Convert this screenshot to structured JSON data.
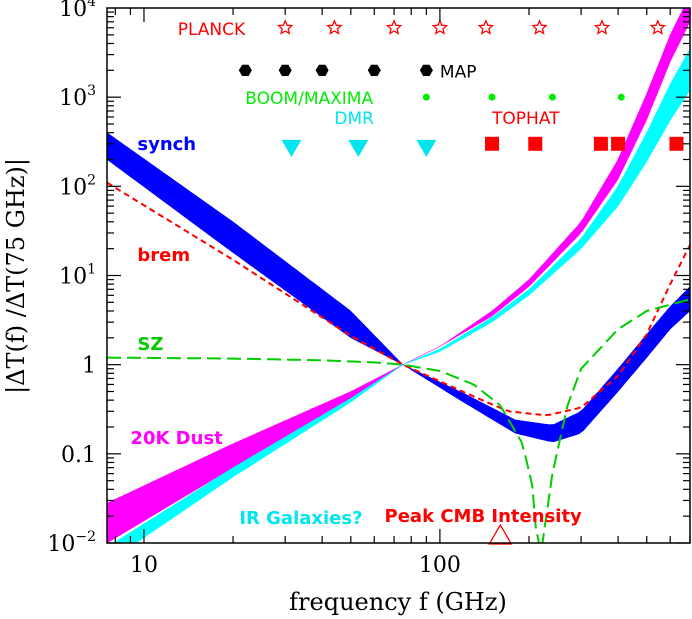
{
  "chart_data": {
    "type": "line",
    "title": "",
    "xlabel": "frequency f (GHz)",
    "ylabel": "|ΔT(f) /ΔT(75 GHz)|",
    "xscale": "log",
    "yscale": "log",
    "xlim": [
      7.5,
      700
    ],
    "ylim": [
      0.01,
      10000
    ],
    "x_ticks": [
      {
        "value": 10,
        "label": "10"
      },
      {
        "value": 100,
        "label": "100"
      }
    ],
    "y_ticks": [
      {
        "value": 0.01,
        "base": "10",
        "exp": "−2"
      },
      {
        "value": 0.1,
        "base": "0.1",
        "exp": ""
      },
      {
        "value": 1,
        "base": "1",
        "exp": ""
      },
      {
        "value": 10,
        "base": "10",
        "exp": "1"
      },
      {
        "value": 100,
        "base": "10",
        "exp": "2"
      },
      {
        "value": 1000,
        "base": "10",
        "exp": "3"
      },
      {
        "value": 10000,
        "base": "10",
        "exp": "4"
      }
    ],
    "colors": {
      "synch": "#0000ff",
      "dust": "#ff00ff",
      "ir": "#00ffff",
      "brem": "#ff0000",
      "sz": "#00cc00",
      "planck": "#ff0000",
      "map": "#000000",
      "boom": "#00ee00",
      "dmr": "#00e5ee",
      "tophat": "#ff0000",
      "peak": "#ff0000"
    },
    "bands": [
      {
        "name": "synch",
        "color": "#0000ff",
        "upper": [
          [
            7.5,
            400
          ],
          [
            20,
            40
          ],
          [
            50,
            4
          ],
          [
            75,
            1
          ],
          [
            120,
            0.48
          ],
          [
            180,
            0.24
          ],
          [
            240,
            0.21
          ],
          [
            300,
            0.3
          ],
          [
            400,
            0.9
          ],
          [
            500,
            2.2
          ],
          [
            600,
            4.5
          ],
          [
            700,
            7.5
          ]
        ],
        "lower": [
          [
            7.5,
            200
          ],
          [
            20,
            18
          ],
          [
            50,
            2
          ],
          [
            75,
            1
          ],
          [
            120,
            0.38
          ],
          [
            180,
            0.17
          ],
          [
            240,
            0.135
          ],
          [
            300,
            0.17
          ],
          [
            400,
            0.5
          ],
          [
            500,
            1.2
          ],
          [
            600,
            2.5
          ],
          [
            700,
            4
          ]
        ]
      },
      {
        "name": "dust",
        "color": "#ff00ff",
        "upper": [
          [
            7.5,
            0.028
          ],
          [
            20,
            0.13
          ],
          [
            50,
            0.5
          ],
          [
            75,
            1
          ],
          [
            100,
            1.6
          ],
          [
            150,
            4
          ],
          [
            200,
            9
          ],
          [
            300,
            40
          ],
          [
            400,
            200
          ],
          [
            500,
            1100
          ],
          [
            600,
            5000
          ],
          [
            700,
            14000
          ]
        ],
        "lower": [
          [
            7.5,
            0.01
          ],
          [
            20,
            0.07
          ],
          [
            50,
            0.4
          ],
          [
            75,
            1
          ],
          [
            100,
            1.6
          ],
          [
            150,
            3.5
          ],
          [
            200,
            7.5
          ],
          [
            300,
            30
          ],
          [
            400,
            120
          ],
          [
            500,
            560
          ],
          [
            600,
            2500
          ],
          [
            700,
            7000
          ]
        ]
      },
      {
        "name": "ir",
        "color": "#00ffff",
        "upper": [
          [
            7.5,
            0.009
          ],
          [
            20,
            0.07
          ],
          [
            50,
            0.42
          ],
          [
            75,
            1
          ],
          [
            100,
            1.5
          ],
          [
            150,
            3.4
          ],
          [
            200,
            7
          ],
          [
            300,
            26
          ],
          [
            400,
            100
          ],
          [
            500,
            400
          ],
          [
            600,
            1400
          ],
          [
            700,
            3500
          ]
        ],
        "lower": [
          [
            7.5,
            0.006
          ],
          [
            20,
            0.055
          ],
          [
            50,
            0.38
          ],
          [
            75,
            1
          ],
          [
            100,
            1.4
          ],
          [
            150,
            3.0
          ],
          [
            200,
            6
          ],
          [
            300,
            20
          ],
          [
            400,
            60
          ],
          [
            500,
            190
          ],
          [
            600,
            550
          ],
          [
            700,
            1200
          ]
        ]
      }
    ],
    "series": [
      {
        "name": "brem",
        "color": "#ff0000",
        "dash": "short",
        "points": [
          [
            7.5,
            110
          ],
          [
            20,
            15
          ],
          [
            50,
            2.1
          ],
          [
            75,
            1
          ],
          [
            100,
            0.65
          ],
          [
            130,
            0.44
          ],
          [
            170,
            0.3
          ],
          [
            230,
            0.27
          ],
          [
            300,
            0.33
          ],
          [
            400,
            0.75
          ],
          [
            500,
            2.2
          ],
          [
            600,
            8
          ],
          [
            700,
            22
          ]
        ]
      },
      {
        "name": "SZ",
        "color": "#00cc00",
        "dash": "long",
        "points": [
          [
            7.5,
            1.2
          ],
          [
            20,
            1.17
          ],
          [
            40,
            1.12
          ],
          [
            60,
            1.06
          ],
          [
            75,
            1
          ],
          [
            100,
            0.85
          ],
          [
            130,
            0.6
          ],
          [
            160,
            0.35
          ],
          [
            190,
            0.13
          ],
          [
            205,
            0.045
          ],
          [
            212,
            0.012
          ],
          [
            217,
            0.0095
          ]
        ]
      },
      {
        "name": "SZ-increment",
        "color": "#00cc00",
        "dash": "long",
        "points": [
          [
            221,
            0.009
          ],
          [
            226,
            0.015
          ],
          [
            240,
            0.06
          ],
          [
            270,
            0.35
          ],
          [
            300,
            0.9
          ],
          [
            400,
            2.5
          ],
          [
            500,
            4
          ],
          [
            700,
            5.4
          ]
        ]
      }
    ],
    "experiments": [
      {
        "name": "PLANCK",
        "color": "#ff0000",
        "marker": "star-open",
        "y": 6000,
        "label_pos": [
          13,
          6000
        ],
        "freqs": [
          30,
          44,
          70,
          100,
          143,
          217,
          353,
          545
        ]
      },
      {
        "name": "MAP",
        "color": "#000000",
        "marker": "hexagon-filled",
        "y": 2000,
        "label_pos": [
          100,
          2000
        ],
        "freqs": [
          22,
          30,
          40,
          60,
          90
        ]
      },
      {
        "name": "BOOM/MAXIMA",
        "color": "#00ee00",
        "marker": "dot",
        "y": 1000,
        "label_pos": [
          22,
          1000
        ],
        "freqs": [
          90,
          150,
          240,
          410
        ]
      },
      {
        "name": "DMR",
        "color": "#00e5ee",
        "marker": "triangle-down",
        "y": 270,
        "label_pos": [
          44,
          600
        ],
        "freqs": [
          31.5,
          53,
          90
        ]
      },
      {
        "name": "TOPHAT",
        "color": "#ff0000",
        "marker": "square-filled",
        "y": 300,
        "label_pos": [
          150,
          600
        ],
        "freqs": [
          150,
          210,
          350,
          400,
          630
        ]
      }
    ],
    "annotations": [
      {
        "text": "synch",
        "color": "#0000ff",
        "at": [
          9.5,
          300
        ]
      },
      {
        "text": "brem",
        "color": "#ff0000",
        "at": [
          9.5,
          17
        ]
      },
      {
        "text": "SZ",
        "color": "#00cc00",
        "at": [
          9.5,
          1.7
        ]
      },
      {
        "text": "20K Dust",
        "color": "#ff00ff",
        "at": [
          9.0,
          0.15
        ]
      },
      {
        "text": "IR Galaxies?",
        "color": "#00e5ee",
        "at": [
          21,
          0.019
        ]
      },
      {
        "text": "Peak CMB Intensity",
        "color": "#ff0000",
        "at": [
          65,
          0.02
        ]
      }
    ],
    "peak_marker": {
      "freq": 160,
      "y": 0.012,
      "color": "#ff0000",
      "marker": "triangle-open"
    }
  }
}
